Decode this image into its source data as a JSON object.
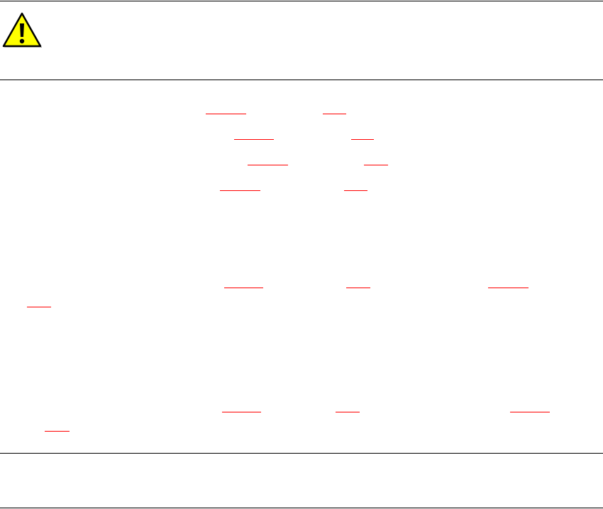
{
  "notice": {
    "icon": "warning-triangle-icon",
    "icon_fill": "#ffff00",
    "icon_stroke": "#000000"
  },
  "link_color": "#ff0000",
  "rule_color": "#000000"
}
